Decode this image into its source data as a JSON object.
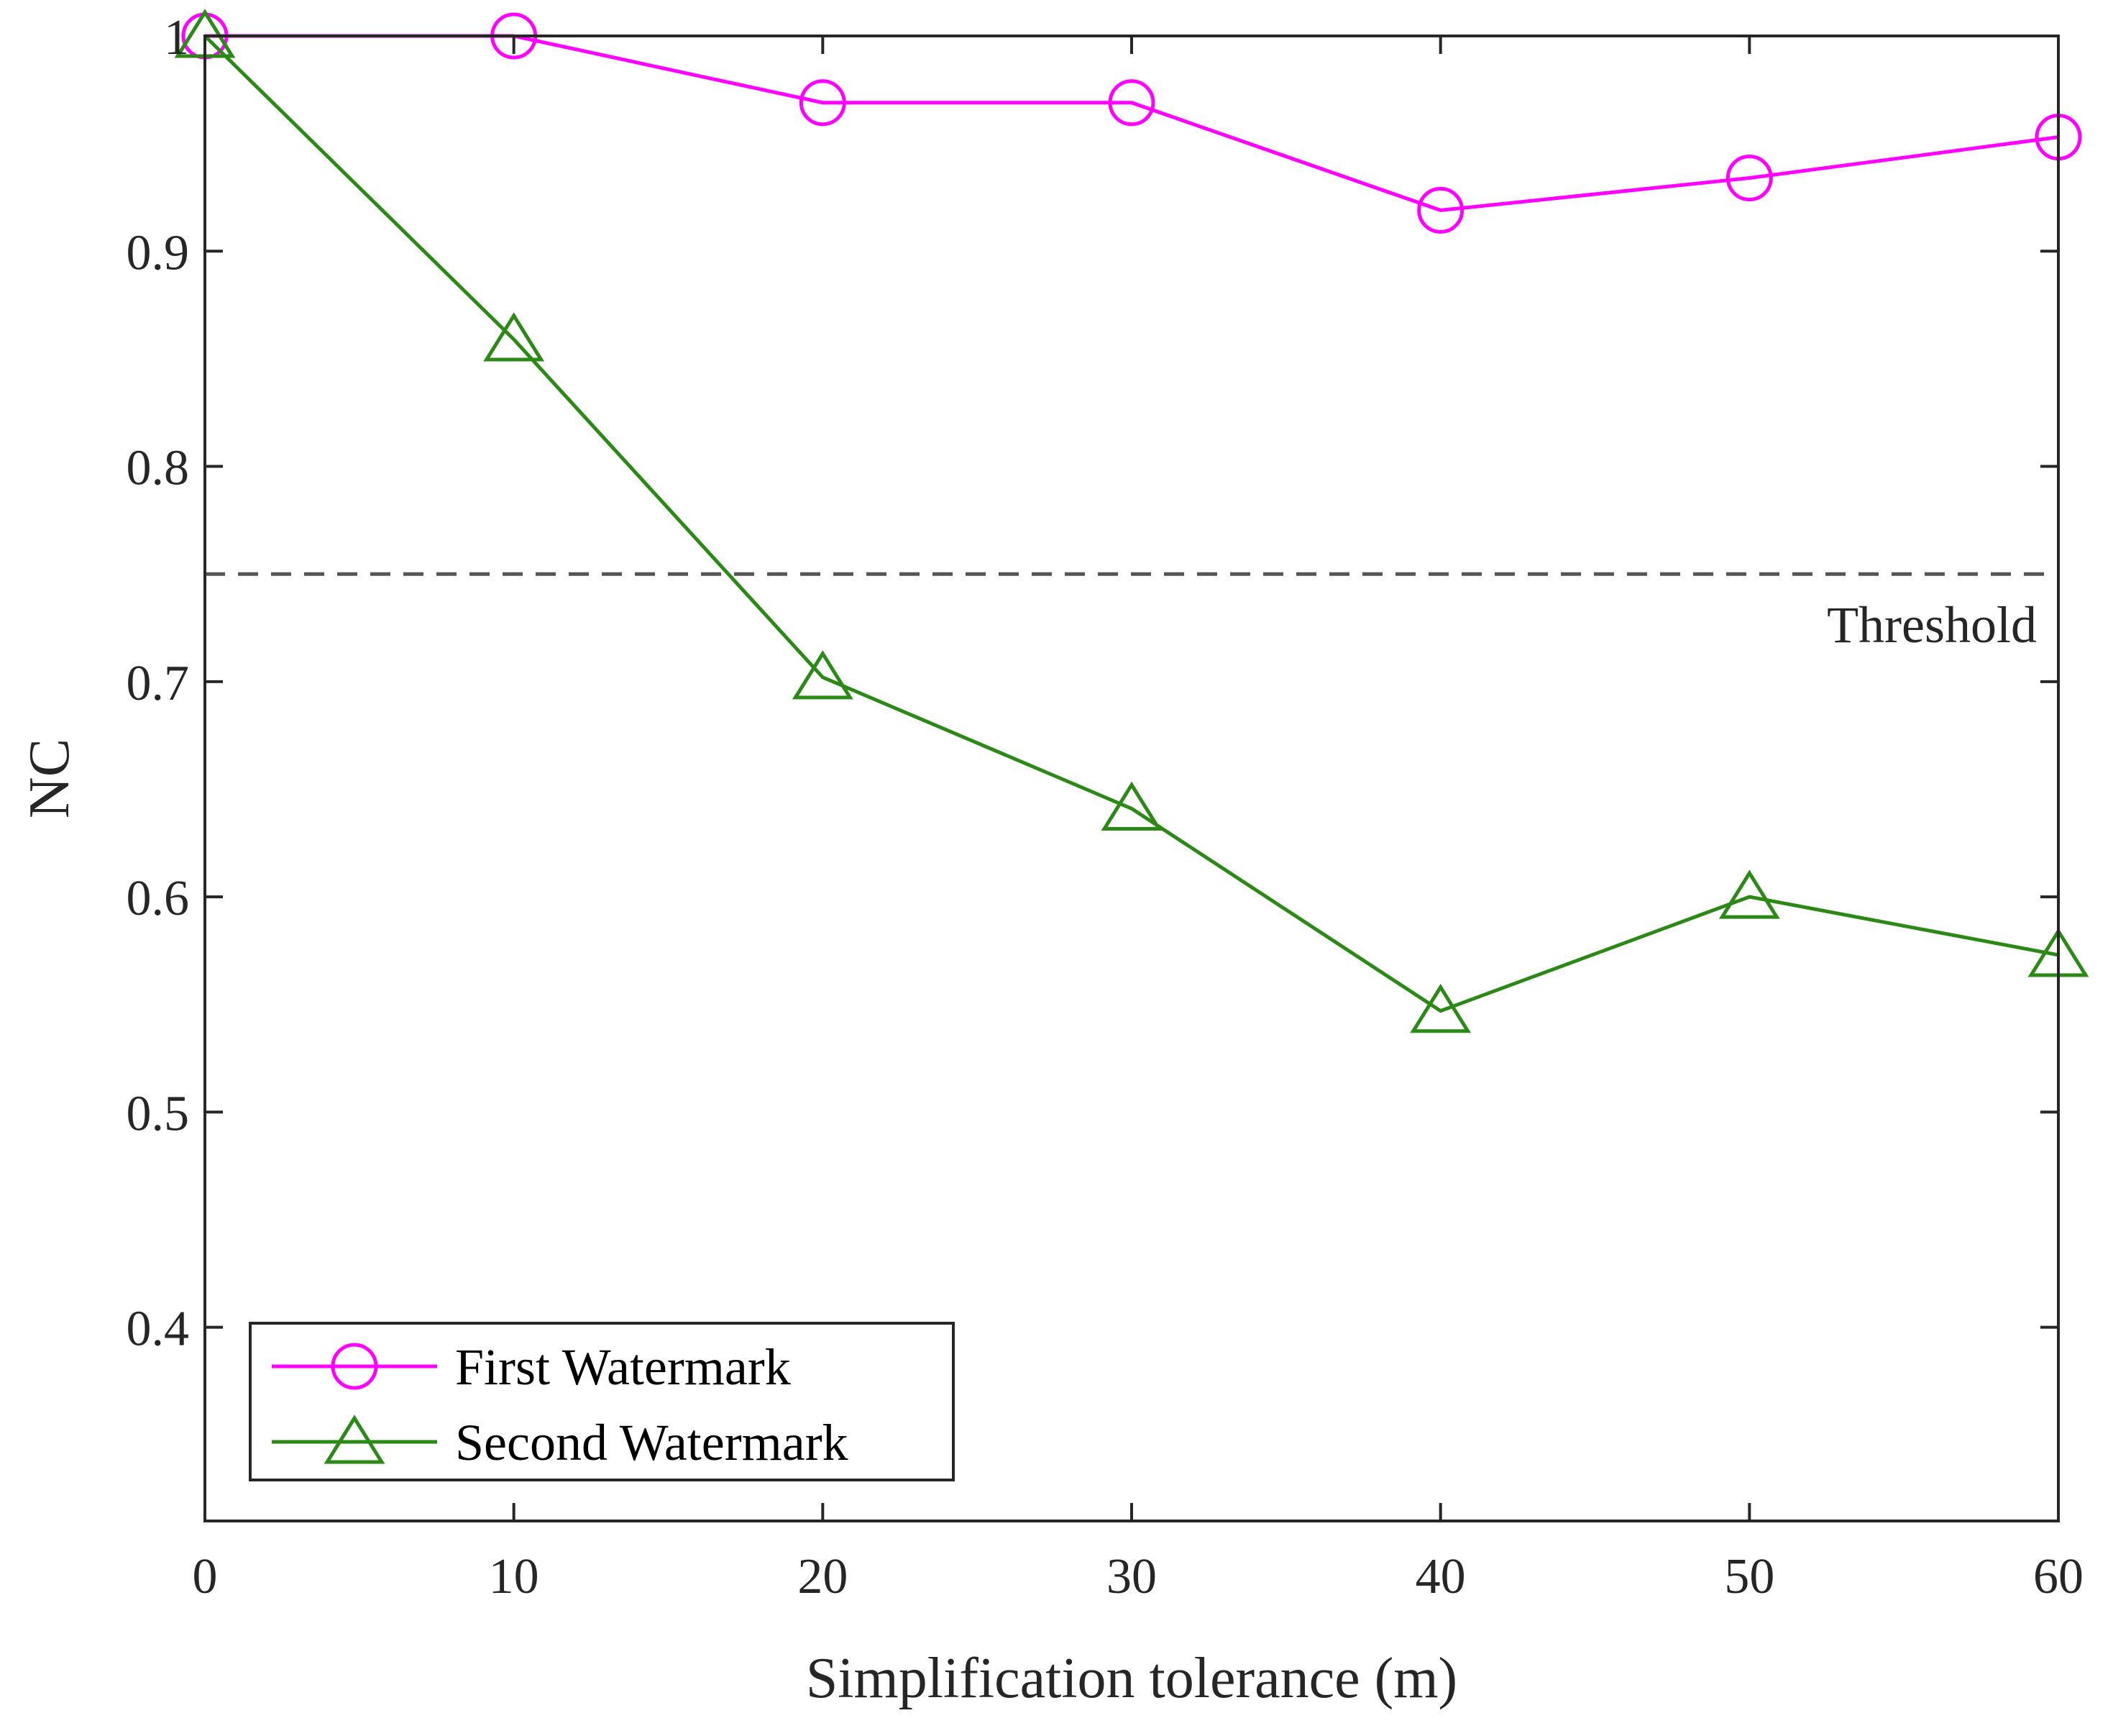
{
  "chart_data": {
    "type": "line",
    "title": "",
    "xlabel": "Simplification tolerance (m)",
    "ylabel": "NC",
    "x": [
      0,
      10,
      20,
      30,
      40,
      50,
      60
    ],
    "xlim": [
      0,
      60
    ],
    "ylim": [
      0.31,
      1.0
    ],
    "xticks": [
      0,
      10,
      20,
      30,
      40,
      50,
      60
    ],
    "xtick_labels": [
      "0",
      "10",
      "20",
      "30",
      "40",
      "50",
      "60"
    ],
    "yticks": [
      0.4,
      0.5,
      0.6,
      0.7,
      0.8,
      0.9,
      1.0
    ],
    "ytick_labels": [
      "0.4",
      "0.5",
      "0.6",
      "0.7",
      "0.8",
      "0.9",
      "1"
    ],
    "grid": false,
    "legend_position": "bottom-left",
    "series": [
      {
        "name": "First Watermark",
        "color": "#ff00ff",
        "marker": "circle",
        "values": [
          1.0,
          1.0,
          0.969,
          0.969,
          0.919,
          0.934,
          0.953
        ]
      },
      {
        "name": "Second Watermark",
        "color": "#2b8a16",
        "marker": "triangle",
        "values": [
          1.0,
          0.859,
          0.702,
          0.641,
          0.547,
          0.6,
          0.573
        ]
      }
    ],
    "threshold": {
      "value": 0.75,
      "label": "Threshold",
      "color": "#555555",
      "style": "dashed"
    }
  }
}
